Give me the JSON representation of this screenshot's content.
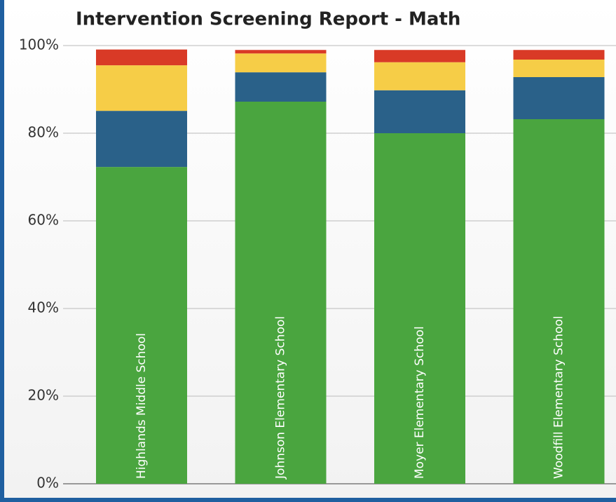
{
  "chart_data": {
    "type": "stacked_bar",
    "title": "Intervention Screening Report - Math",
    "categories": [
      "Highlands Middle School",
      "Johnson Elementary School",
      "Moyer Elementary School",
      "Woodfill Elementary School"
    ],
    "series": [
      {
        "color": "#4aa53f",
        "values": [
          72.3,
          87.2,
          80.0,
          83.2
        ]
      },
      {
        "color": "#2a6189",
        "values": [
          12.8,
          6.7,
          9.8,
          9.6
        ]
      },
      {
        "color": "#f6cd47",
        "values": [
          10.4,
          4.3,
          6.4,
          4.0
        ]
      },
      {
        "color": "#d93a26",
        "values": [
          3.6,
          0.8,
          2.8,
          2.2
        ]
      }
    ],
    "ylim": [
      0,
      100
    ],
    "yticks": [
      {
        "value": 0,
        "label": "0%"
      },
      {
        "value": 20,
        "label": "20%"
      },
      {
        "value": 40,
        "label": "40%"
      },
      {
        "value": 60,
        "label": "60%"
      },
      {
        "value": 80,
        "label": "80%"
      },
      {
        "value": 100,
        "label": "100%"
      }
    ],
    "grid": true
  }
}
